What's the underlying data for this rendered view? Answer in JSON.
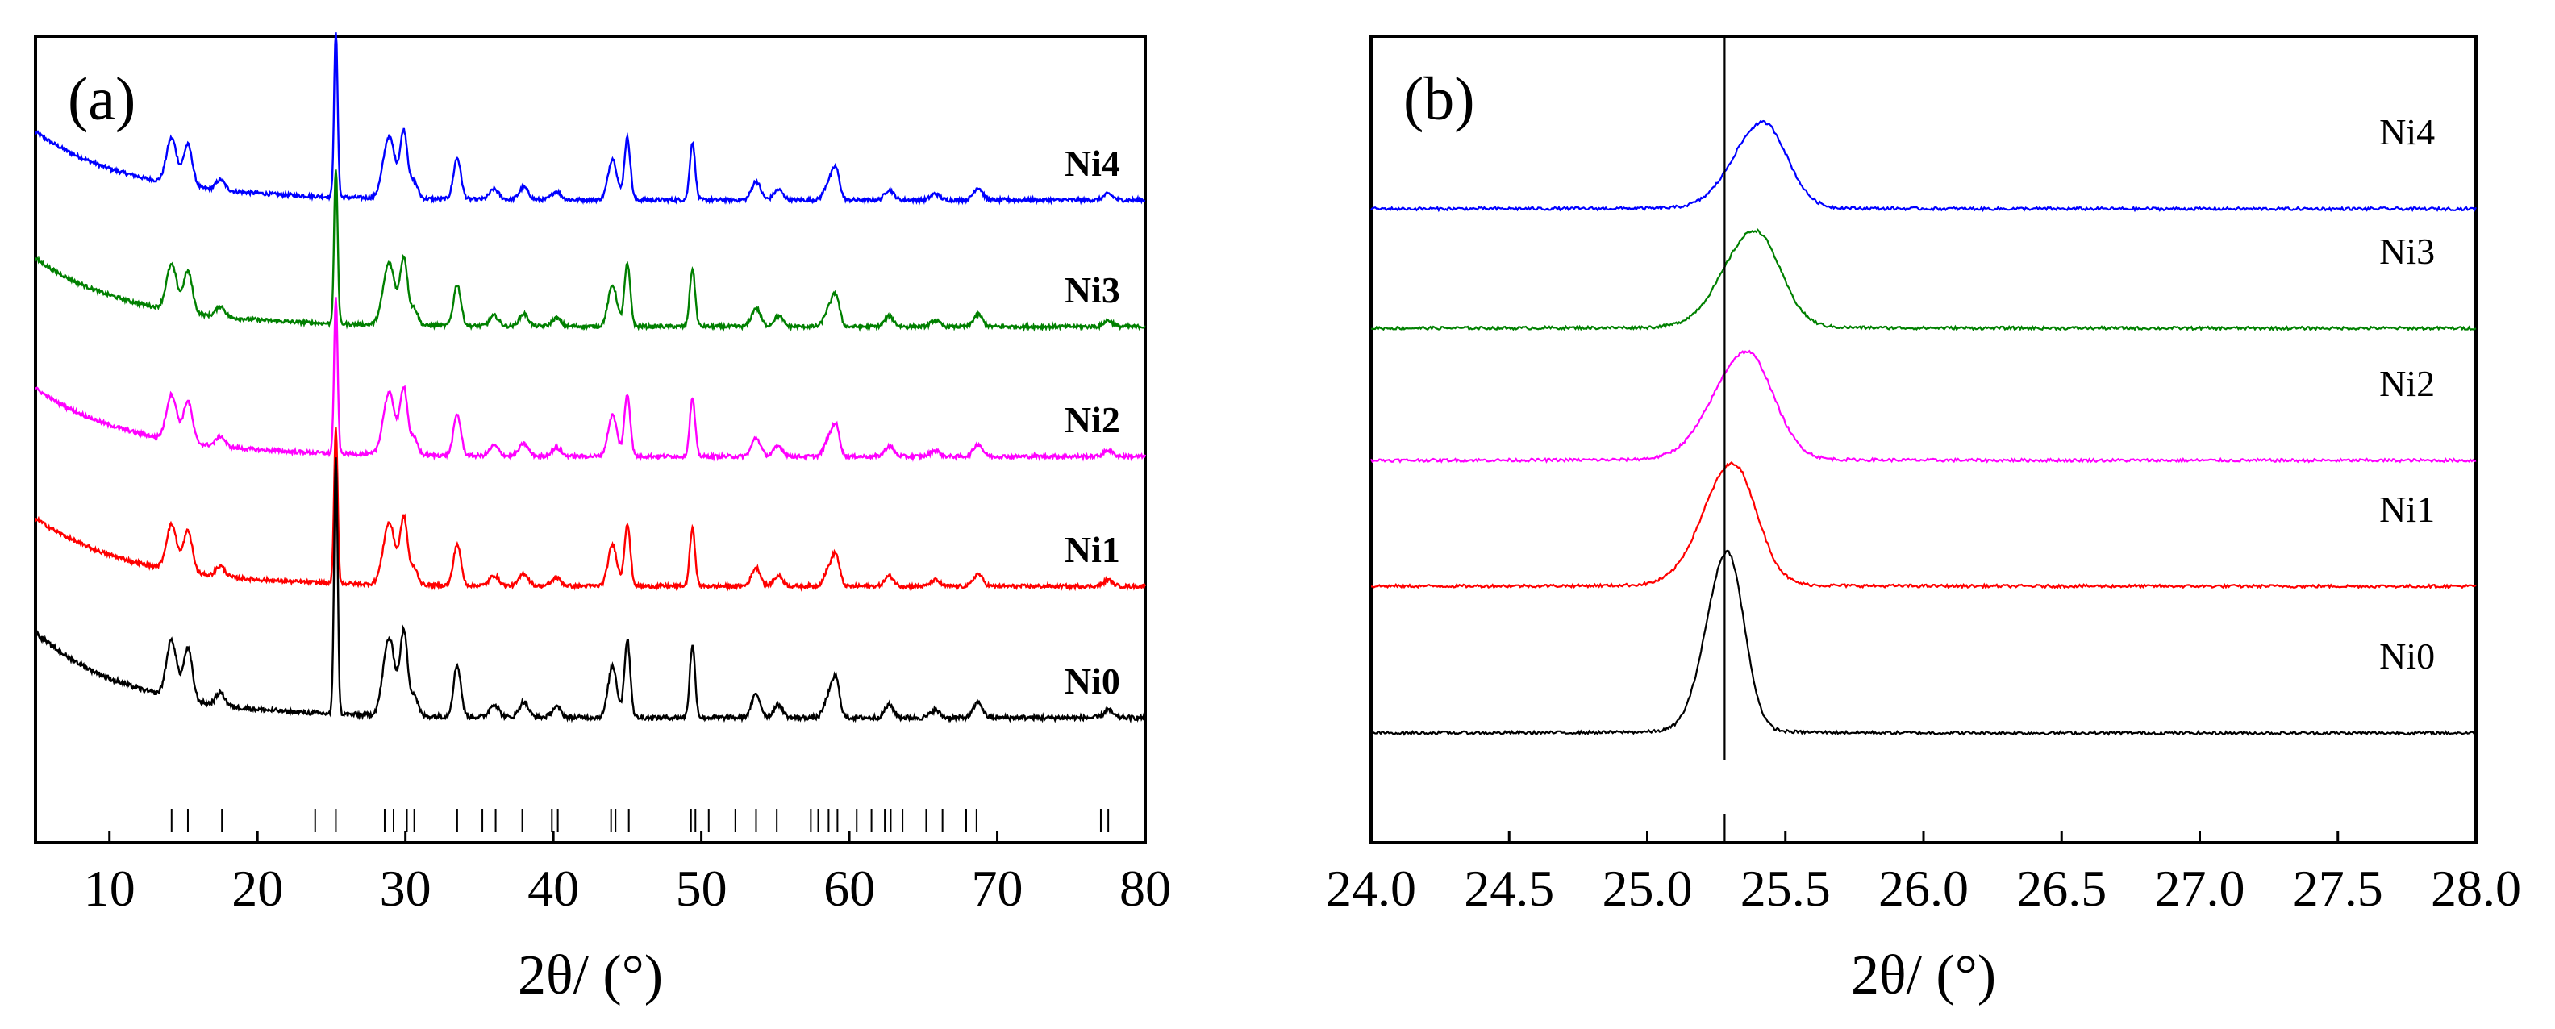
{
  "chart_data": [
    {
      "type": "line",
      "panel_label": "(a)",
      "xlabel": "2θ/ (°)",
      "xlim": [
        5,
        80
      ],
      "xticks": [
        10,
        20,
        30,
        40,
        50,
        60,
        70,
        80
      ],
      "yaxis_ticks_visible": false,
      "series": [
        {
          "name": "Ni4",
          "color": "#0000ff",
          "offset": 4,
          "label_x": 74
        },
        {
          "name": "Ni3",
          "color": "#008000",
          "offset": 3,
          "label_x": 74
        },
        {
          "name": "Ni2",
          "color": "#ff00ff",
          "offset": 2,
          "label_x": 74
        },
        {
          "name": "Ni1",
          "color": "#ff0000",
          "offset": 1,
          "label_x": 74
        },
        {
          "name": "Ni0",
          "color": "#000000",
          "offset": 0,
          "label_x": 74
        }
      ],
      "peaks": [
        {
          "x": 14.2,
          "h": 0.22,
          "w": 0.35
        },
        {
          "x": 15.3,
          "h": 0.2,
          "w": 0.3
        },
        {
          "x": 17.5,
          "h": 0.05,
          "w": 0.3
        },
        {
          "x": 25.3,
          "h": 1.0,
          "w": 0.12
        },
        {
          "x": 28.9,
          "h": 0.3,
          "w": 0.4
        },
        {
          "x": 29.9,
          "h": 0.32,
          "w": 0.25
        },
        {
          "x": 30.6,
          "h": 0.08,
          "w": 0.25
        },
        {
          "x": 33.5,
          "h": 0.2,
          "w": 0.25
        },
        {
          "x": 36.0,
          "h": 0.05,
          "w": 0.3
        },
        {
          "x": 38.0,
          "h": 0.06,
          "w": 0.3
        },
        {
          "x": 40.2,
          "h": 0.04,
          "w": 0.3
        },
        {
          "x": 44.0,
          "h": 0.2,
          "w": 0.3
        },
        {
          "x": 45.0,
          "h": 0.3,
          "w": 0.2
        },
        {
          "x": 49.4,
          "h": 0.28,
          "w": 0.18
        },
        {
          "x": 53.7,
          "h": 0.09,
          "w": 0.3
        },
        {
          "x": 55.2,
          "h": 0.05,
          "w": 0.3
        },
        {
          "x": 58.6,
          "h": 0.08,
          "w": 0.3
        },
        {
          "x": 59.1,
          "h": 0.14,
          "w": 0.25
        },
        {
          "x": 62.7,
          "h": 0.05,
          "w": 0.3
        },
        {
          "x": 65.8,
          "h": 0.03,
          "w": 0.3
        },
        {
          "x": 68.7,
          "h": 0.06,
          "w": 0.3
        },
        {
          "x": 77.5,
          "h": 0.03,
          "w": 0.3
        }
      ],
      "reference_lines": [
        14.2,
        15.3,
        17.6,
        23.9,
        25.3,
        28.6,
        29.2,
        30.1,
        30.6,
        33.5,
        35.2,
        36.1,
        37.9,
        39.9,
        40.3,
        43.9,
        44.2,
        45.1,
        49.3,
        49.6,
        50.5,
        52.3,
        53.7,
        55.1,
        57.4,
        57.9,
        58.6,
        59.2,
        60.5,
        61.5,
        62.4,
        62.8,
        63.6,
        65.2,
        66.3,
        67.9,
        68.6,
        77.0,
        77.5
      ]
    },
    {
      "type": "line",
      "panel_label": "(b)",
      "xlabel": "2θ/ (°)",
      "xlim": [
        24.0,
        28.0
      ],
      "xticks": [
        "24.0",
        "24.5",
        "25.0",
        "25.5",
        "26.0",
        "26.5",
        "27.0",
        "27.5",
        "28.0"
      ],
      "yaxis_ticks_visible": false,
      "reference_line_x": 25.28,
      "series": [
        {
          "name": "Ni4",
          "color": "#0000ff",
          "offset": 4,
          "peak_x": 25.42,
          "peak_h": 0.62,
          "sigma": 0.085
        },
        {
          "name": "Ni3",
          "color": "#008000",
          "offset": 3,
          "peak_x": 25.39,
          "peak_h": 0.7,
          "sigma": 0.09
        },
        {
          "name": "Ni2",
          "color": "#ff00ff",
          "offset": 2,
          "peak_x": 25.36,
          "peak_h": 0.78,
          "sigma": 0.095
        },
        {
          "name": "Ni1",
          "color": "#ff0000",
          "offset": 1,
          "peak_x": 25.31,
          "peak_h": 0.88,
          "sigma": 0.085
        },
        {
          "name": "Ni0",
          "color": "#000000",
          "offset": 0,
          "peak_x": 25.29,
          "peak_h": 1.3,
          "sigma": 0.06
        }
      ]
    }
  ]
}
